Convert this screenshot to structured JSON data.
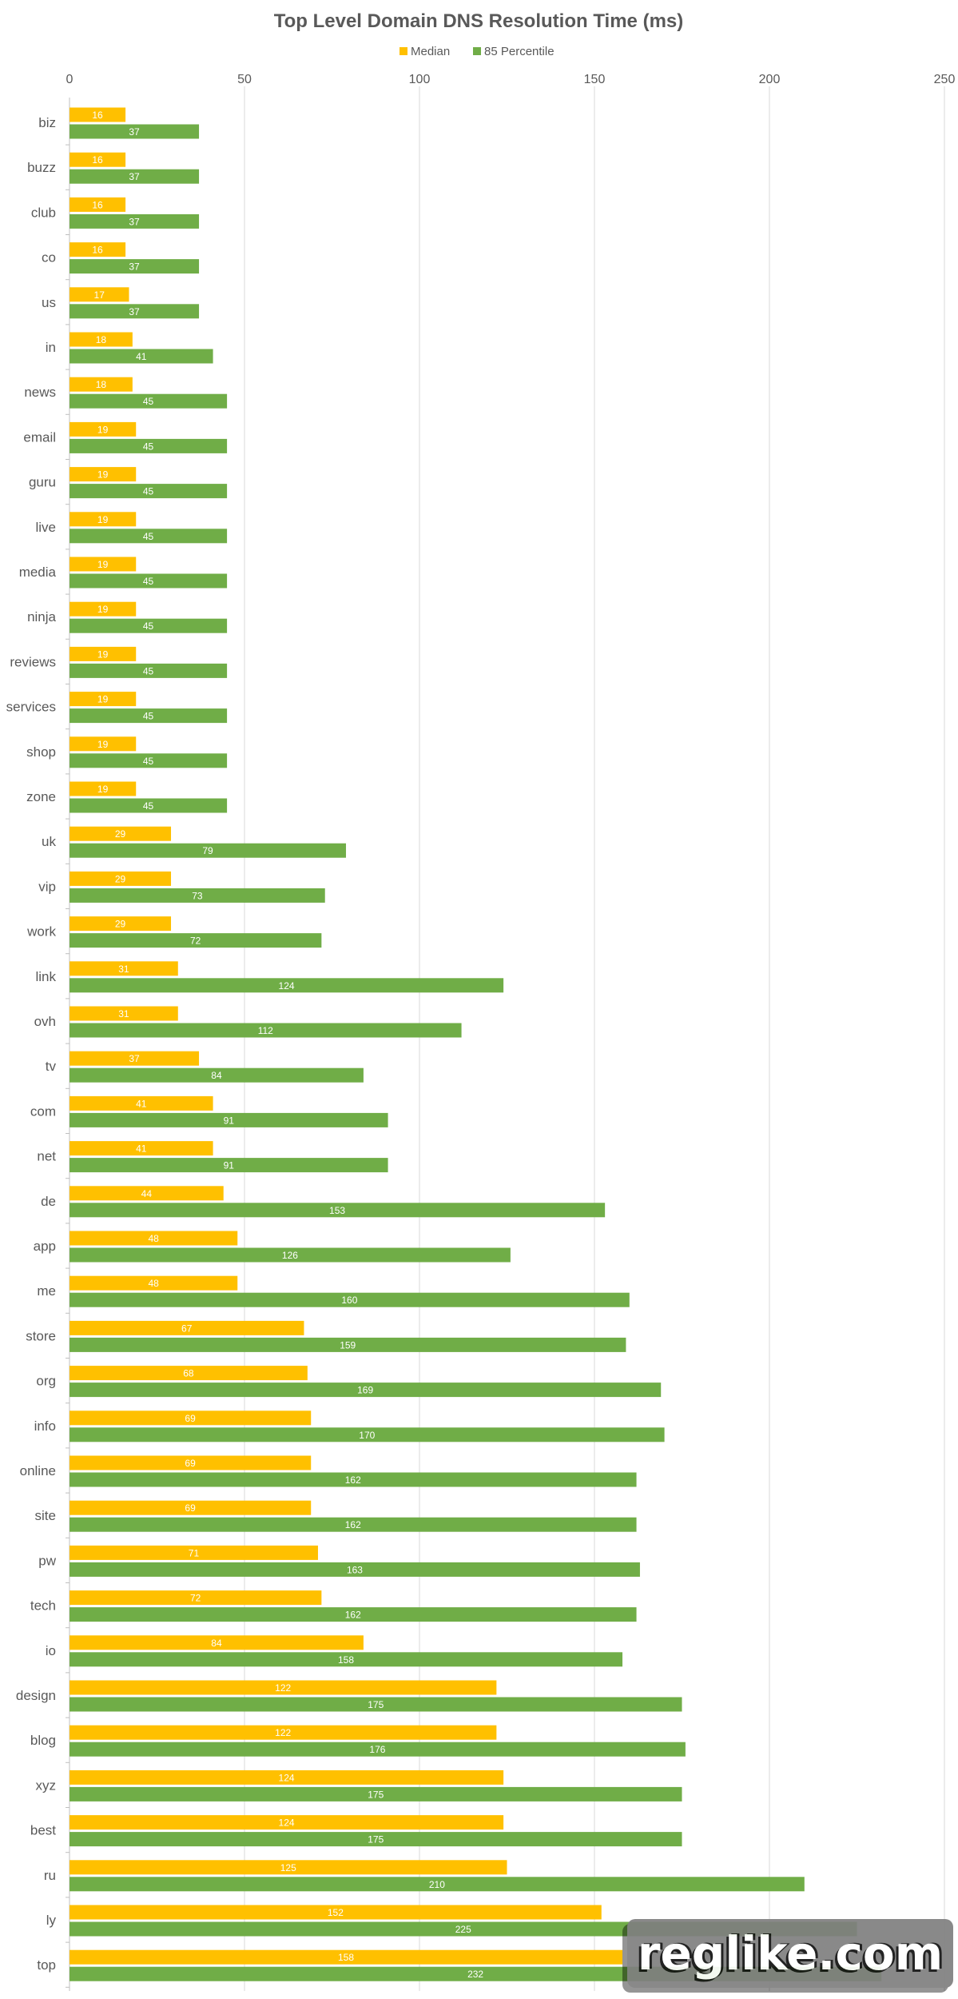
{
  "chart_data": {
    "type": "bar",
    "orientation": "horizontal",
    "title": "Top Level Domain DNS Resolution Time (ms)",
    "categories": [
      "biz",
      "buzz",
      "club",
      "co",
      "us",
      "in",
      "news",
      "email",
      "guru",
      "live",
      "media",
      "ninja",
      "reviews",
      "services",
      "shop",
      "zone",
      "uk",
      "vip",
      "work",
      "link",
      "ovh",
      "tv",
      "com",
      "net",
      "de",
      "app",
      "me",
      "store",
      "org",
      "info",
      "online",
      "site",
      "pw",
      "tech",
      "io",
      "design",
      "blog",
      "xyz",
      "best",
      "ru",
      "ly",
      "top"
    ],
    "series": [
      {
        "name": "Median",
        "color": "#FFC000",
        "values": [
          16,
          16,
          16,
          16,
          17,
          18,
          18,
          19,
          19,
          19,
          19,
          19,
          19,
          19,
          19,
          19,
          29,
          29,
          29,
          31,
          31,
          37,
          41,
          41,
          44,
          48,
          48,
          67,
          68,
          69,
          69,
          69,
          71,
          72,
          84,
          122,
          122,
          124,
          124,
          125,
          152,
          158
        ]
      },
      {
        "name": "85 Percentile",
        "color": "#70AD47",
        "values": [
          37,
          37,
          37,
          37,
          37,
          41,
          45,
          45,
          45,
          45,
          45,
          45,
          45,
          45,
          45,
          45,
          79,
          73,
          72,
          124,
          112,
          84,
          91,
          91,
          153,
          126,
          160,
          159,
          169,
          170,
          162,
          162,
          163,
          162,
          158,
          175,
          176,
          175,
          175,
          210,
          225,
          232
        ]
      }
    ],
    "xlim": [
      0,
      250
    ],
    "xticks": [
      "0",
      "50",
      "100",
      "150",
      "200",
      "250"
    ],
    "grid": true,
    "legend": "top"
  },
  "watermark": {
    "text": "reglike.com"
  }
}
